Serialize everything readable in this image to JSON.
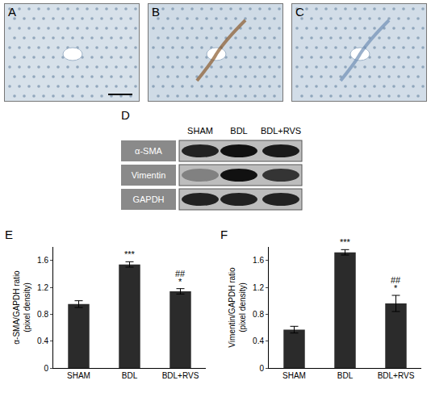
{
  "micrographs": [
    {
      "label": "A"
    },
    {
      "label": "B"
    },
    {
      "label": "C"
    }
  ],
  "blot": {
    "label": "D",
    "lanes": [
      "SHAM",
      "BDL",
      "BDL+RVS"
    ],
    "rows": [
      "α-SMA",
      "Vimentin",
      "GAPDH"
    ]
  },
  "chart_data": [
    {
      "type": "bar",
      "panel": "E",
      "ylabel": "α-SMA/GAPDH ratio (pixel density)",
      "categories": [
        "SHAM",
        "BDL",
        "BDL+RVS"
      ],
      "values": [
        0.95,
        1.54,
        1.14
      ],
      "errors": [
        0.05,
        0.04,
        0.04
      ],
      "color": "#2b2b2b",
      "ylim": [
        0,
        1.8
      ],
      "yticks": [
        0,
        0.4,
        0.8,
        1.2,
        1.6
      ],
      "grid": false,
      "annotations": [
        {
          "category": "BDL",
          "text": "***"
        },
        {
          "category": "BDL+RVS",
          "text": "*"
        },
        {
          "category": "BDL+RVS",
          "text": "##"
        }
      ]
    },
    {
      "type": "bar",
      "panel": "F",
      "ylabel": "Vimentin/GAPDH ratio (pixel density)",
      "categories": [
        "SHAM",
        "BDL",
        "BDL+RVS"
      ],
      "values": [
        0.57,
        1.72,
        0.96
      ],
      "errors": [
        0.05,
        0.04,
        0.12
      ],
      "color": "#2b2b2b",
      "ylim": [
        0,
        1.8
      ],
      "yticks": [
        0,
        0.4,
        0.8,
        1.2,
        1.6
      ],
      "grid": false,
      "annotations": [
        {
          "category": "BDL",
          "text": "***"
        },
        {
          "category": "BDL+RVS",
          "text": "*"
        },
        {
          "category": "BDL+RVS",
          "text": "##"
        }
      ]
    }
  ]
}
